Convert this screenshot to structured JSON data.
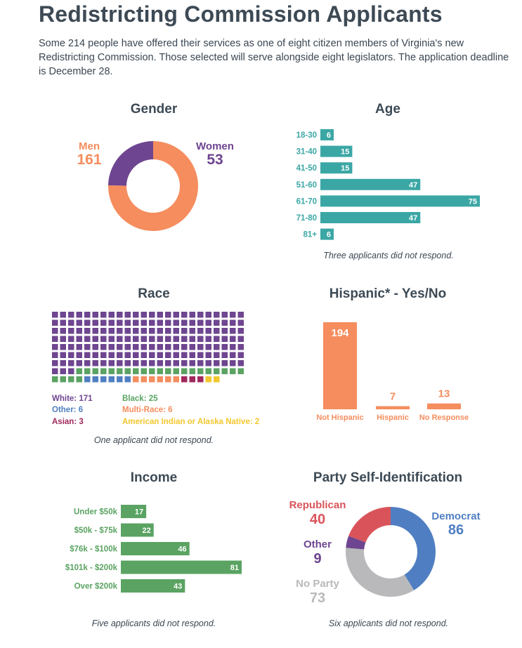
{
  "page": {
    "title": "Redistricting Commission Applicants",
    "intro": "Some 214 people have offered their services as one of eight citizen members of Virginia's new Redistricting Commission. Those selected will serve alongside eight legislators. The application deadline is December 28."
  },
  "panels": {
    "gender": {
      "title": "Gender",
      "note": ""
    },
    "age": {
      "title": "Age",
      "note": "Three applicants did not respond."
    },
    "race": {
      "title": "Race",
      "note": "One applicant did not respond."
    },
    "hispanic": {
      "title": "Hispanic* - Yes/No",
      "note": ""
    },
    "income": {
      "title": "Income",
      "note": "Five applicants did not respond."
    },
    "party": {
      "title": "Party Self-Identification",
      "note": "Six applicants did not respond."
    }
  },
  "colors": {
    "orange": "#f58d5e",
    "purple": "#6e4590",
    "teal": "#3ba7a5",
    "green": "#5aa362",
    "blue": "#4f7fc2",
    "red": "#d9545a",
    "gray": "#b9b9bb",
    "magenta": "#a0285d",
    "yellow": "#f2c72e"
  },
  "chart_data": [
    {
      "id": "gender",
      "type": "pie",
      "title": "Gender",
      "slices": [
        {
          "label": "Men",
          "value": 161,
          "color": "#f58d5e"
        },
        {
          "label": "Women",
          "value": 53,
          "color": "#6e4590"
        }
      ]
    },
    {
      "id": "age",
      "type": "bar",
      "orientation": "horizontal",
      "title": "Age",
      "categories": [
        "18-30",
        "31-40",
        "41-50",
        "51-60",
        "61-70",
        "71-80",
        "81+"
      ],
      "values": [
        6,
        15,
        15,
        47,
        75,
        47,
        6
      ],
      "color": "#3ba7a5",
      "note": "Three applicants did not respond."
    },
    {
      "id": "race",
      "type": "waffle",
      "title": "Race",
      "categories": [
        {
          "label": "White",
          "value": 171,
          "color": "#6e4590"
        },
        {
          "label": "Black",
          "value": 25,
          "color": "#5aa362"
        },
        {
          "label": "Other",
          "value": 6,
          "color": "#4f7fc2"
        },
        {
          "label": "Multi-Race",
          "value": 6,
          "color": "#f58d5e"
        },
        {
          "label": "Asian",
          "value": 3,
          "color": "#a0285d"
        },
        {
          "label": "American Indian or Alaska Native",
          "value": 2,
          "color": "#f2c72e"
        }
      ],
      "note": "One applicant did not respond."
    },
    {
      "id": "hispanic",
      "type": "bar",
      "title": "Hispanic* - Yes/No",
      "categories": [
        "Not Hispanic",
        "Hispanic",
        "No Response"
      ],
      "values": [
        194,
        7,
        13
      ],
      "color": "#f58d5e"
    },
    {
      "id": "income",
      "type": "bar",
      "orientation": "horizontal",
      "title": "Income",
      "categories": [
        "Under $50k",
        "$50k - $75k",
        "$76k - $100k",
        "$101k - $200k",
        "Over $200k"
      ],
      "values": [
        17,
        22,
        46,
        81,
        43
      ],
      "color": "#5aa362",
      "note": "Five applicants did not respond."
    },
    {
      "id": "party",
      "type": "pie",
      "title": "Party Self-Identification",
      "slices": [
        {
          "label": "Democrat",
          "value": 86,
          "color": "#4f7fc2"
        },
        {
          "label": "No Party",
          "value": 73,
          "color": "#b9b9bb"
        },
        {
          "label": "Other",
          "value": 9,
          "color": "#6e4590"
        },
        {
          "label": "Republican",
          "value": 40,
          "color": "#d9545a"
        }
      ],
      "note": "Six applicants did not respond."
    }
  ]
}
